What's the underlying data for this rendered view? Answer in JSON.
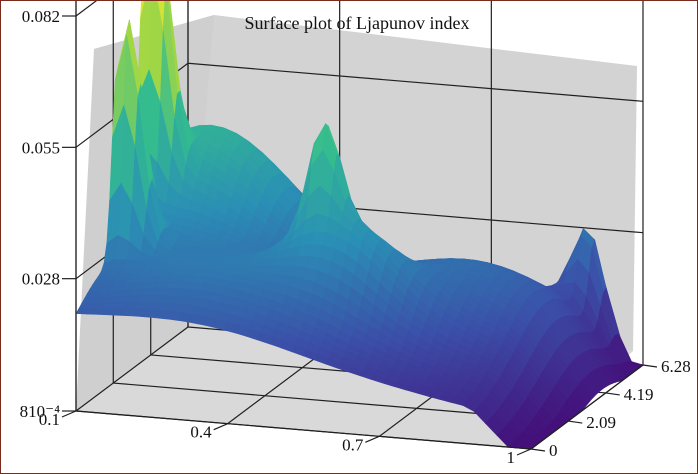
{
  "chart_data": {
    "type": "surface",
    "title": "Surface plot of Ljapunov index",
    "xlabel": "",
    "ylabel": "",
    "zlabel": "",
    "x_ticks": [
      "0.1",
      "0.4",
      "0.7",
      "1"
    ],
    "y_ticks": [
      "0",
      "2.09",
      "4.19",
      "6.28"
    ],
    "z_ticks": [
      "810⁻⁴",
      "0.028",
      "0.055",
      "0.082"
    ],
    "x_range": [
      0.1,
      1
    ],
    "y_range": [
      0,
      6.28
    ],
    "z_range": [
      0.0008,
      0.082
    ],
    "grid": true,
    "colormap": [
      "#44107a",
      "#3b4fa8",
      "#2a8fb5",
      "#34bc8f",
      "#a8d840",
      "#f2ec2c"
    ],
    "features": [
      {
        "x": 0.12,
        "y": 3.8,
        "z": 0.085,
        "note": "tallest peaks along the back-left edge"
      },
      {
        "x": 0.12,
        "y": 2.3,
        "z": 0.078
      },
      {
        "x": 0.5,
        "y": 2.6,
        "z": 0.052,
        "note": "isolated spike"
      },
      {
        "x": 0.9,
        "y": 6.1,
        "z": 0.048,
        "note": "peak on the back-right edge"
      }
    ]
  },
  "colors": {
    "pane": "#d3d3d3",
    "gridline": "#202020",
    "frame_border": "#7a2a1a"
  }
}
